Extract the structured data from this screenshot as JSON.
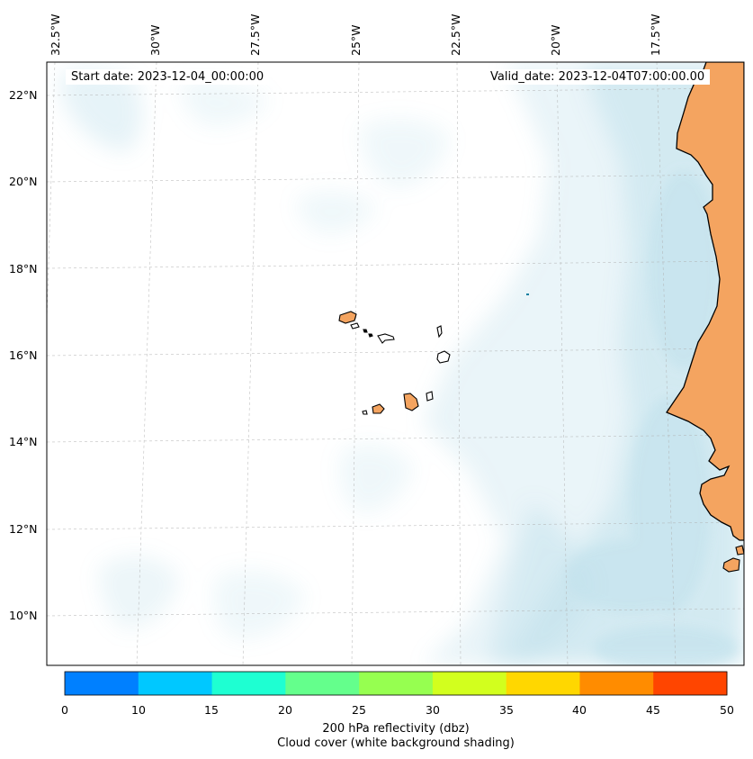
{
  "header": {
    "start_date": "Start date: 2023-12-04_00:00:00",
    "valid_date": "Valid_date: 2023-12-04T07:00:00.00"
  },
  "map": {
    "lon_labels": [
      "32.5°W",
      "30°W",
      "27.5°W",
      "25°W",
      "22.5°W",
      "20°W",
      "17.5°W"
    ],
    "lat_labels": [
      "22°N",
      "20°N",
      "18°N",
      "16°N",
      "14°N",
      "12°N",
      "10°N"
    ],
    "land_color": "#f4a460",
    "cloud_color": "#add8e6",
    "gridlines": true,
    "gridline_style": "dashed"
  },
  "colorbar": {
    "ticks": [
      "0",
      "10",
      "15",
      "20",
      "25",
      "30",
      "35",
      "40",
      "45",
      "50"
    ],
    "colors": [
      "#0080ff",
      "#00c8ff",
      "#1effd2",
      "#64ff8c",
      "#96ff50",
      "#d2ff1e",
      "#ffd700",
      "#ff8c00",
      "#ff4500"
    ],
    "label_line1": "200 hPa reflectivity (dbz)",
    "label_line2": "Cloud cover (white background shading)"
  }
}
